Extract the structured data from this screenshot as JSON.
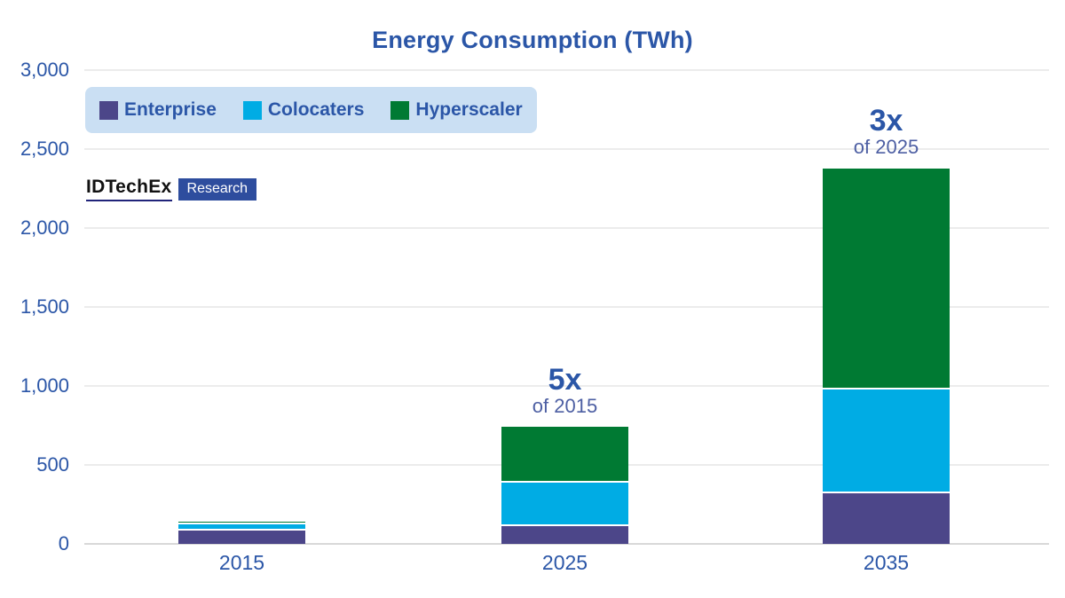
{
  "title": "Energy Consumption (TWh)",
  "logo": {
    "brand": "IDTechEx",
    "badge": "Research"
  },
  "chart_data": {
    "type": "bar",
    "stacked": true,
    "title": "Energy Consumption (TWh)",
    "unit": "TWh",
    "categories": [
      "2015",
      "2025",
      "2035"
    ],
    "series": [
      {
        "name": "Enterprise",
        "color": "#4c4689",
        "values": [
          85,
          115,
          320
        ]
      },
      {
        "name": "Colocaters",
        "color": "#00ace4",
        "values": [
          40,
          275,
          655
        ]
      },
      {
        "name": "Hyperscaler",
        "color": "#007a33",
        "values": [
          15,
          350,
          1400
        ]
      }
    ],
    "totals": [
      140,
      740,
      2375
    ],
    "ylim": [
      0,
      3000
    ],
    "yticks": [
      {
        "value": 3000,
        "label": "3,000"
      },
      {
        "value": 2500,
        "label": "2,500"
      },
      {
        "value": 2000,
        "label": "2,000"
      },
      {
        "value": 1500,
        "label": "1,500"
      },
      {
        "value": 1000,
        "label": "1,000"
      },
      {
        "value": 500,
        "label": "500"
      },
      {
        "value": 0,
        "label": "0"
      }
    ],
    "annotations": [
      {
        "category": "2025",
        "text": "5x",
        "subtext": "of 2015"
      },
      {
        "category": "2035",
        "text": "3x",
        "subtext": "of 2025"
      }
    ],
    "grid": "horizontal",
    "legend_position": "top-left"
  },
  "colors": {
    "text_primary": "#2b56a7",
    "annotation_sub": "#4d5fa3",
    "legend_bg": "#cadff3",
    "gridline": "#ececec",
    "axis_line": "#d8d8d8",
    "logo_badge_bg": "#2e4d9e",
    "background": "#ffffff"
  }
}
